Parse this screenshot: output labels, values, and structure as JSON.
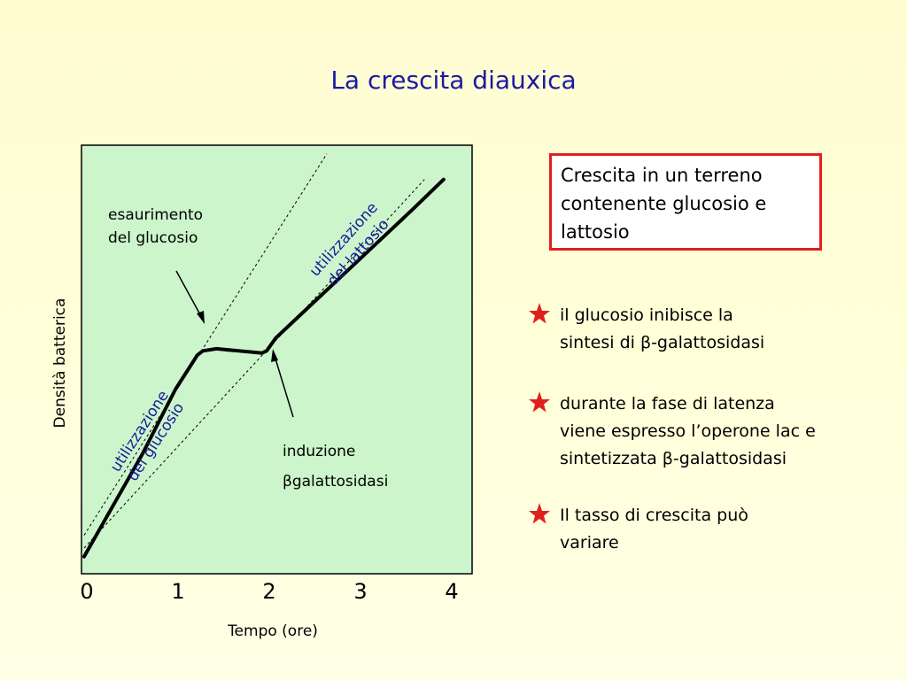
{
  "title": "La crescita diauxica",
  "info_box": "Crescita in un terreno contenente glucosio e lattosio",
  "bullets": [
    {
      "icon": "star-icon",
      "line1": "il glucosio inibisce la",
      "line2": "sintesi di β-galattosidasi"
    },
    {
      "icon": "star-icon",
      "line1": "durante la  fase di latenza",
      "line2": "viene espresso l’operone lac e",
      "line3": "sintetizzata  β-galattosidasi"
    },
    {
      "icon": "star-icon",
      "line1": "Il tasso di crescita può",
      "line2": "variare"
    }
  ],
  "colors": {
    "title": "#1a1aa6",
    "plot_bg": "#ccf5cc",
    "box_border": "#e0201e",
    "star": "#e0201e",
    "annotation_blue": "#1a1a9a"
  },
  "chart_data": {
    "type": "line",
    "xlabel": "Tempo (ore)",
    "ylabel": "Densità batterica",
    "xticks": [
      "0",
      "1",
      "2",
      "3",
      "4"
    ],
    "xlim": [
      0,
      4.2
    ],
    "ylim": [
      0,
      1
    ],
    "grid": false,
    "series": [
      {
        "x": [
          0,
          0.64,
          1.0,
          1.24,
          1.3,
          1.45,
          1.7,
          1.95,
          2.0,
          2.1,
          2.4,
          2.8,
          3.2,
          3.6,
          3.94
        ],
        "values": [
          0.04,
          0.28,
          0.43,
          0.51,
          0.52,
          0.525,
          0.52,
          0.515,
          0.52,
          0.55,
          0.61,
          0.69,
          0.77,
          0.85,
          0.92
        ]
      }
    ],
    "reference_lines": [
      {
        "x": [
          0,
          2.66
        ],
        "values": [
          0.09,
          0.98
        ]
      },
      {
        "x": [
          0,
          3.73
        ],
        "values": [
          0.06,
          0.92
        ]
      }
    ],
    "annotations": [
      {
        "label1": "esaurimento",
        "label2": "del glucosio"
      },
      {
        "label1": "induzione",
        "label2": "βgalattosidasi"
      },
      {
        "label1": "utilizzazione",
        "label2": "del glucosio"
      },
      {
        "label1": "utilizzazione",
        "label2": "del lattosio"
      }
    ]
  }
}
